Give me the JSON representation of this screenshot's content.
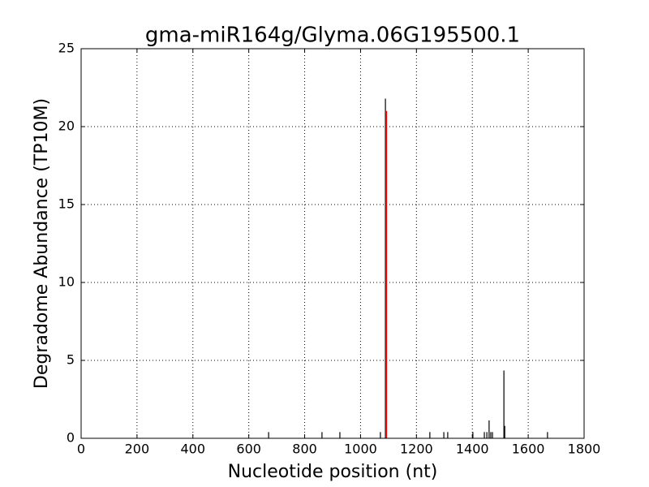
{
  "chart_data": {
    "type": "bar",
    "title": "gma-miR164g/Glyma.06G195500.1",
    "x_label": "Nucleotide position (nt)",
    "y_label": "Degradome Abundance (TP10M)",
    "series": [
      {
        "color": "#000000",
        "x": [
          671,
          862,
          926,
          1071,
          1089,
          1248,
          1298,
          1312,
          1402,
          1443,
          1452,
          1460,
          1466,
          1472,
          1513,
          1516,
          1669
        ],
        "values": [
          0.4,
          0.4,
          0.4,
          0.4,
          21.8,
          0.4,
          0.4,
          0.4,
          0.4,
          0.4,
          0.4,
          1.15,
          0.4,
          0.4,
          4.35,
          0.8,
          0.4
        ]
      },
      {
        "color": "#ff0000",
        "x": [
          1092
        ],
        "values": [
          21
        ]
      }
    ],
    "xlim": [
      0,
      1800
    ],
    "xticks": [
      0,
      200,
      400,
      600,
      800,
      1000,
      1200,
      1400,
      1600,
      1800
    ],
    "ylim": [
      0,
      25
    ],
    "yticks": [
      0,
      5,
      10,
      15,
      20,
      25
    ],
    "grid": true
  }
}
